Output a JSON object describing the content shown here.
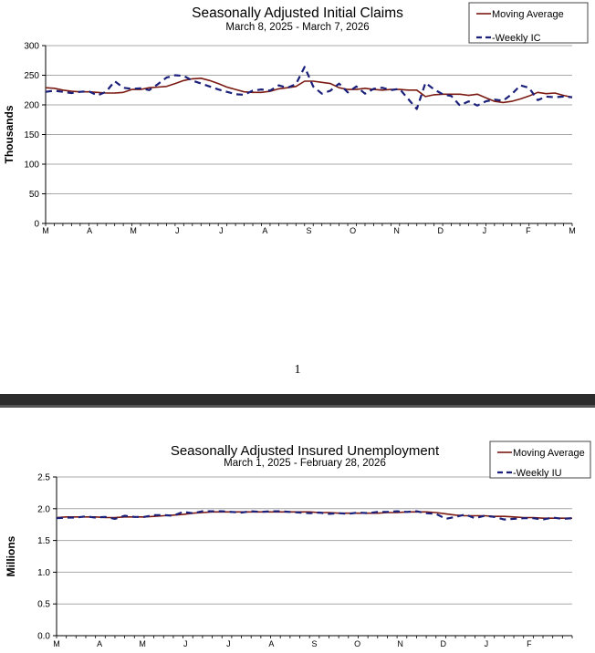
{
  "page_number": "1",
  "colors": {
    "moving_average": "#7b1a12",
    "weekly": "#1a1f7a",
    "grid": "#a8a8a8"
  },
  "chart_data": [
    {
      "type": "line",
      "title": "Seasonally Adjusted Initial Claims",
      "subtitle": "March 8, 2025 - March 7, 2026",
      "ylabel": "Thousands",
      "ylim": [
        0,
        300
      ],
      "yticks": [
        0,
        50,
        100,
        150,
        200,
        250,
        300
      ],
      "ytick_labels": [
        "0",
        "50",
        "100",
        "150",
        "200",
        "250",
        "300"
      ],
      "xticks": [
        "M",
        "A",
        "M",
        "J",
        "J",
        "A",
        "S",
        "O",
        "N",
        "D",
        "J",
        "F",
        "M"
      ],
      "grid": true,
      "legend": "top-right",
      "series": [
        {
          "name": "Moving Average",
          "style": "solid",
          "values": [
            229,
            228,
            225,
            223,
            222,
            222,
            221,
            220,
            220,
            221,
            226,
            226,
            229,
            230,
            231,
            236,
            241,
            244,
            245,
            241,
            236,
            230,
            226,
            222,
            221,
            221,
            223,
            227,
            229,
            231,
            240,
            240,
            238,
            236,
            229,
            226,
            226,
            228,
            226,
            225,
            226,
            226,
            225,
            225,
            214,
            217,
            218,
            218,
            218,
            216,
            218,
            212,
            206,
            204,
            206,
            210,
            215,
            221,
            219,
            220,
            216,
            213
          ]
        },
        {
          "name": "Weekly IC",
          "style": "dashed",
          "values": [
            222,
            224,
            222,
            220,
            222,
            223,
            216,
            222,
            240,
            229,
            227,
            228,
            225,
            235,
            246,
            250,
            249,
            241,
            236,
            231,
            226,
            222,
            218,
            217,
            224,
            226,
            224,
            233,
            229,
            235,
            264,
            231,
            219,
            224,
            236,
            221,
            231,
            219,
            227,
            229,
            225,
            227,
            210,
            193,
            237,
            226,
            218,
            215,
            199,
            206,
            199,
            206,
            209,
            207,
            218,
            233,
            229,
            208,
            214,
            213,
            214,
            213
          ]
        }
      ]
    },
    {
      "type": "line",
      "title": "Seasonally Adjusted Insured Unemployment",
      "subtitle": "March 1, 2025 - February 28, 2026",
      "ylabel": "Millions",
      "ylim": [
        0.0,
        2.5
      ],
      "yticks": [
        0.0,
        0.5,
        1.0,
        1.5,
        2.0,
        2.5
      ],
      "ytick_labels": [
        "0.0",
        "0.5",
        "1.0",
        "1.5",
        "2.0",
        "2.5"
      ],
      "xticks": [
        "M",
        "A",
        "M",
        "J",
        "J",
        "A",
        "S",
        "O",
        "N",
        "D",
        "J",
        "F"
      ],
      "grid": true,
      "legend": "top-right",
      "series": [
        {
          "name": "Moving Average",
          "style": "solid",
          "values": [
            1.86,
            1.87,
            1.87,
            1.87,
            1.87,
            1.86,
            1.86,
            1.87,
            1.87,
            1.87,
            1.88,
            1.89,
            1.9,
            1.91,
            1.93,
            1.94,
            1.95,
            1.95,
            1.95,
            1.95,
            1.95,
            1.95,
            1.95,
            1.95,
            1.95,
            1.95,
            1.95,
            1.94,
            1.94,
            1.93,
            1.93,
            1.93,
            1.93,
            1.93,
            1.94,
            1.94,
            1.95,
            1.95,
            1.95,
            1.94,
            1.92,
            1.9,
            1.89,
            1.89,
            1.89,
            1.88,
            1.88,
            1.87,
            1.86,
            1.86,
            1.85,
            1.85,
            1.85,
            1.85
          ]
        },
        {
          "name": "Weekly IU",
          "style": "dashed",
          "values": [
            1.85,
            1.86,
            1.86,
            1.88,
            1.86,
            1.87,
            1.84,
            1.89,
            1.87,
            1.87,
            1.9,
            1.9,
            1.89,
            1.95,
            1.93,
            1.96,
            1.96,
            1.96,
            1.95,
            1.94,
            1.96,
            1.95,
            1.96,
            1.96,
            1.95,
            1.94,
            1.93,
            1.94,
            1.92,
            1.93,
            1.92,
            1.94,
            1.93,
            1.95,
            1.95,
            1.96,
            1.95,
            1.96,
            1.93,
            1.92,
            1.84,
            1.87,
            1.91,
            1.85,
            1.89,
            1.87,
            1.83,
            1.84,
            1.85,
            1.85,
            1.83,
            1.86,
            1.84,
            1.85
          ]
        }
      ]
    }
  ]
}
